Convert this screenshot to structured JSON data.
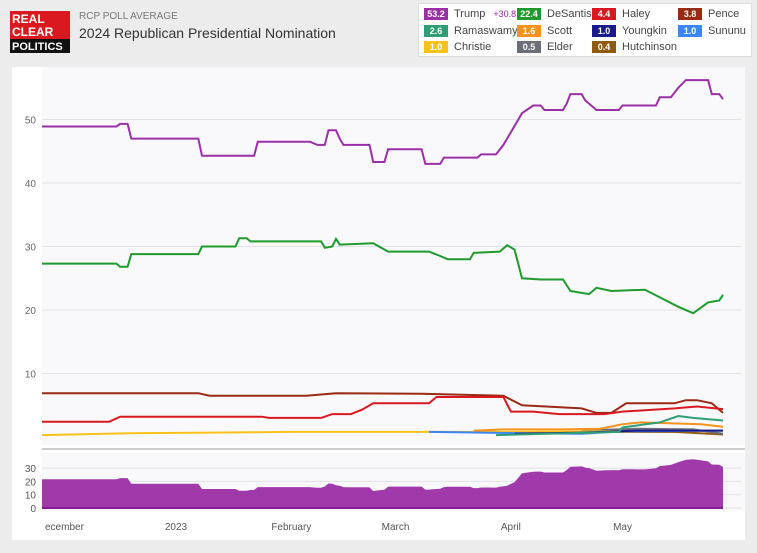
{
  "header": {
    "logo_text": [
      "REAL",
      "CLEAR",
      "POLITICS"
    ],
    "kicker": "RCP POLL AVERAGE",
    "title": "2024 Republican Presidential Nomination"
  },
  "legend": [
    {
      "value": "53.2",
      "name": "Trump",
      "spread": "+30.8",
      "color": "#9b2fa6"
    },
    {
      "value": "22.4",
      "name": "DeSantis",
      "color": "#1f9a2d"
    },
    {
      "value": "4.4",
      "name": "Haley",
      "color": "#d9181f"
    },
    {
      "value": "3.8",
      "name": "Pence",
      "color": "#9a2a14"
    },
    {
      "value": "2.6",
      "name": "Ramaswamy",
      "color": "#2f9e74"
    },
    {
      "value": "1.6",
      "name": "Scott",
      "color": "#f7931e"
    },
    {
      "value": "1.0",
      "name": "Youngkin",
      "color": "#1a1a8c"
    },
    {
      "value": "1.0",
      "name": "Sununu",
      "color": "#3d85f0"
    },
    {
      "value": "1.0",
      "name": "Christie",
      "color": "#f9c21a"
    },
    {
      "value": "0.5",
      "name": "Elder",
      "color": "#6b6e78"
    },
    {
      "value": "0.4",
      "name": "Hutchinson",
      "color": "#8f5a12"
    }
  ],
  "chart_data": {
    "type": "line",
    "x_range": [
      "2022-11-26",
      "2023-05-28"
    ],
    "y_ticks": [
      10,
      20,
      30,
      40,
      50
    ],
    "x_tick_labels": [
      {
        "date": "2022-12-01",
        "label": "ecember"
      },
      {
        "date": "2023-01-01",
        "label": "2023"
      },
      {
        "date": "2023-02-01",
        "label": "February"
      },
      {
        "date": "2023-03-01",
        "label": "March"
      },
      {
        "date": "2023-04-01",
        "label": "April"
      },
      {
        "date": "2023-05-01",
        "label": "May"
      }
    ],
    "grid": true,
    "series": [
      {
        "name": "Trump",
        "color": "#9b2fa6",
        "points": [
          [
            "2022-11-26",
            48.9
          ],
          [
            "2022-12-16",
            48.9
          ],
          [
            "2022-12-17",
            49.3
          ],
          [
            "2022-12-19",
            49.3
          ],
          [
            "2022-12-20",
            47
          ],
          [
            "2023-01-07",
            47
          ],
          [
            "2023-01-08",
            44.3
          ],
          [
            "2023-01-22",
            44.3
          ],
          [
            "2023-01-23",
            46.5
          ],
          [
            "2023-02-06",
            46.5
          ],
          [
            "2023-02-08",
            46
          ],
          [
            "2023-02-10",
            46
          ],
          [
            "2023-02-11",
            48.3
          ],
          [
            "2023-02-13",
            48.3
          ],
          [
            "2023-02-14",
            47
          ],
          [
            "2023-02-15",
            46
          ],
          [
            "2023-02-22",
            46
          ],
          [
            "2023-02-23",
            43.3
          ],
          [
            "2023-02-26",
            43.3
          ],
          [
            "2023-02-27",
            45.3
          ],
          [
            "2023-03-08",
            45.3
          ],
          [
            "2023-03-09",
            43
          ],
          [
            "2023-03-13",
            43
          ],
          [
            "2023-03-14",
            44
          ],
          [
            "2023-03-23",
            44
          ],
          [
            "2023-03-24",
            44.5
          ],
          [
            "2023-03-28",
            44.5
          ],
          [
            "2023-03-30",
            46
          ],
          [
            "2023-04-01",
            48
          ],
          [
            "2023-04-04",
            51
          ],
          [
            "2023-04-07",
            52.2
          ],
          [
            "2023-04-09",
            52.2
          ],
          [
            "2023-04-10",
            51.5
          ],
          [
            "2023-04-15",
            51.5
          ],
          [
            "2023-04-16",
            52.5
          ],
          [
            "2023-04-17",
            54
          ],
          [
            "2023-04-20",
            54
          ],
          [
            "2023-04-21",
            53
          ],
          [
            "2023-04-24",
            51.5
          ],
          [
            "2023-04-30",
            51.5
          ],
          [
            "2023-05-01",
            52.2
          ],
          [
            "2023-05-10",
            52.2
          ],
          [
            "2023-05-11",
            53.5
          ],
          [
            "2023-05-14",
            53.5
          ],
          [
            "2023-05-16",
            55
          ],
          [
            "2023-05-18",
            56.2
          ],
          [
            "2023-05-24",
            56.2
          ],
          [
            "2023-05-25",
            54
          ],
          [
            "2023-05-27",
            54
          ],
          [
            "2023-05-28",
            53.2
          ]
        ]
      },
      {
        "name": "DeSantis",
        "color": "#1f9a2d",
        "points": [
          [
            "2022-11-26",
            27.3
          ],
          [
            "2022-12-16",
            27.3
          ],
          [
            "2022-12-17",
            26.8
          ],
          [
            "2022-12-19",
            26.8
          ],
          [
            "2022-12-20",
            28.8
          ],
          [
            "2023-01-07",
            28.8
          ],
          [
            "2023-01-08",
            30
          ],
          [
            "2023-01-17",
            30
          ],
          [
            "2023-01-18",
            31.3
          ],
          [
            "2023-01-20",
            31.3
          ],
          [
            "2023-01-21",
            30.8
          ],
          [
            "2023-02-09",
            30.8
          ],
          [
            "2023-02-10",
            29.8
          ],
          [
            "2023-02-12",
            30
          ],
          [
            "2023-02-13",
            31.2
          ],
          [
            "2023-02-14",
            30.3
          ],
          [
            "2023-02-23",
            30.5
          ],
          [
            "2023-02-27",
            29.2
          ],
          [
            "2023-03-10",
            29.2
          ],
          [
            "2023-03-13",
            28.5
          ],
          [
            "2023-03-15",
            28
          ],
          [
            "2023-03-21",
            28
          ],
          [
            "2023-03-22",
            29
          ],
          [
            "2023-03-29",
            29.2
          ],
          [
            "2023-03-31",
            30.2
          ],
          [
            "2023-04-02",
            29.5
          ],
          [
            "2023-04-04",
            25
          ],
          [
            "2023-04-09",
            24.8
          ],
          [
            "2023-04-15",
            24.8
          ],
          [
            "2023-04-17",
            23
          ],
          [
            "2023-04-22",
            22.5
          ],
          [
            "2023-04-24",
            23.5
          ],
          [
            "2023-04-28",
            23
          ],
          [
            "2023-05-07",
            23.2
          ],
          [
            "2023-05-10",
            22.3
          ],
          [
            "2023-05-16",
            20.5
          ],
          [
            "2023-05-20",
            19.5
          ],
          [
            "2023-05-24",
            21.2
          ],
          [
            "2023-05-27",
            21.5
          ],
          [
            "2023-05-28",
            22.4
          ]
        ]
      },
      {
        "name": "Haley",
        "color": "#d9181f",
        "points": [
          [
            "2022-11-26",
            2.4
          ],
          [
            "2022-12-14",
            2.4
          ],
          [
            "2022-12-17",
            3.2
          ],
          [
            "2023-01-24",
            3.2
          ],
          [
            "2023-01-26",
            3
          ],
          [
            "2023-02-09",
            3
          ],
          [
            "2023-02-12",
            3.6
          ],
          [
            "2023-02-17",
            3.6
          ],
          [
            "2023-02-20",
            4.3
          ],
          [
            "2023-02-23",
            5.3
          ],
          [
            "2023-03-10",
            5.3
          ],
          [
            "2023-03-12",
            6.3
          ],
          [
            "2023-03-30",
            6.3
          ],
          [
            "2023-04-01",
            4
          ],
          [
            "2023-04-07",
            4
          ],
          [
            "2023-04-14",
            3.6
          ],
          [
            "2023-04-26",
            3.6
          ],
          [
            "2023-05-01",
            4
          ],
          [
            "2023-05-15",
            4.5
          ],
          [
            "2023-05-21",
            4.8
          ],
          [
            "2023-05-28",
            4.4
          ]
        ]
      },
      {
        "name": "Pence",
        "color": "#9a2a14",
        "points": [
          [
            "2022-11-26",
            6.9
          ],
          [
            "2023-01-07",
            6.9
          ],
          [
            "2023-01-10",
            6.5
          ],
          [
            "2023-02-05",
            6.5
          ],
          [
            "2023-02-13",
            6.9
          ],
          [
            "2023-03-08",
            6.8
          ],
          [
            "2023-03-30",
            6.5
          ],
          [
            "2023-04-04",
            5
          ],
          [
            "2023-04-20",
            4.5
          ],
          [
            "2023-04-24",
            3.8
          ],
          [
            "2023-04-28",
            3.8
          ],
          [
            "2023-05-02",
            5.3
          ],
          [
            "2023-05-15",
            5.3
          ],
          [
            "2023-05-18",
            5.8
          ],
          [
            "2023-05-21",
            5.8
          ],
          [
            "2023-05-25",
            5.3
          ],
          [
            "2023-05-28",
            3.8
          ]
        ]
      },
      {
        "name": "Ramaswamy",
        "color": "#2f9e74",
        "points": [
          [
            "2023-03-28",
            0.3
          ],
          [
            "2023-04-30",
            0.8
          ],
          [
            "2023-05-01",
            1.5
          ],
          [
            "2023-05-11",
            2.3
          ],
          [
            "2023-05-16",
            3.3
          ],
          [
            "2023-05-20",
            3
          ],
          [
            "2023-05-28",
            2.6
          ]
        ]
      },
      {
        "name": "Scott",
        "color": "#f7931e",
        "points": [
          [
            "2023-03-22",
            1
          ],
          [
            "2023-03-30",
            1.2
          ],
          [
            "2023-04-15",
            1.2
          ],
          [
            "2023-04-25",
            1.3
          ],
          [
            "2023-05-01",
            2
          ],
          [
            "2023-05-06",
            2.3
          ],
          [
            "2023-05-22",
            2
          ],
          [
            "2023-05-28",
            1.6
          ]
        ]
      },
      {
        "name": "Youngkin",
        "color": "#1a1a8c",
        "points": [
          [
            "2023-04-02",
            0.5
          ],
          [
            "2023-04-20",
            0.7
          ],
          [
            "2023-05-05",
            1
          ],
          [
            "2023-05-28",
            1.0
          ]
        ]
      },
      {
        "name": "Sununu",
        "color": "#3d85f0",
        "points": [
          [
            "2023-03-10",
            0.8
          ],
          [
            "2023-04-05",
            0.6
          ],
          [
            "2023-04-20",
            0.5
          ],
          [
            "2023-05-01",
            0.9
          ],
          [
            "2023-05-28",
            1.0
          ]
        ]
      },
      {
        "name": "Christie",
        "color": "#f9c21a",
        "points": [
          [
            "2022-11-26",
            0.3
          ],
          [
            "2022-12-20",
            0.6
          ],
          [
            "2023-02-01",
            0.8
          ],
          [
            "2023-04-01",
            0.8
          ],
          [
            "2023-05-28",
            1.0
          ]
        ]
      },
      {
        "name": "Elder",
        "color": "#6b6e78",
        "points": [
          [
            "2023-04-20",
            1
          ],
          [
            "2023-05-05",
            1.3
          ],
          [
            "2023-05-20",
            1.2
          ],
          [
            "2023-05-28",
            0.5
          ]
        ]
      },
      {
        "name": "Hutchinson",
        "color": "#8f5a12",
        "points": [
          [
            "2023-04-03",
            0.5
          ],
          [
            "2023-04-25",
            0.8
          ],
          [
            "2023-05-15",
            0.8
          ],
          [
            "2023-05-28",
            0.4
          ]
        ]
      }
    ],
    "spread_chart": {
      "type": "area",
      "series": "Trump minus DeSantis",
      "y_ticks": [
        0,
        10,
        20,
        30
      ],
      "color": "#9b2fa6"
    }
  }
}
